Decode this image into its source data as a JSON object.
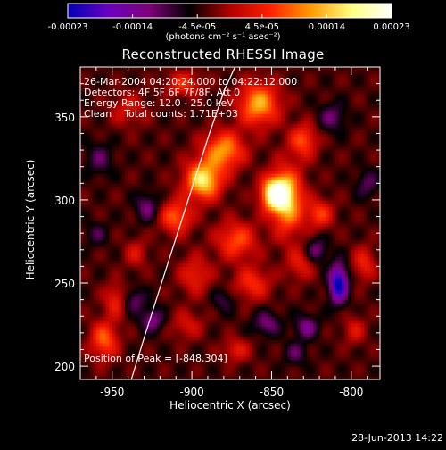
{
  "chart_data": {
    "type": "heatmap",
    "title": "Reconstructed RHESSI Image",
    "xlabel": "Heliocentric X (arcsec)",
    "ylabel": "Heliocentric Y (arcsec)",
    "xlim": [
      -970,
      -782
    ],
    "ylim": [
      192,
      380
    ],
    "x_ticks": [
      -950,
      -900,
      -850,
      -800
    ],
    "y_ticks": [
      200,
      250,
      300,
      350
    ],
    "colorbar": {
      "range": [
        -0.00023,
        0.00023
      ],
      "tick_labels": [
        "-0.00023",
        "-0.00014",
        "-4.5e-05",
        "4.5e-05",
        "0.00014",
        "0.00023"
      ],
      "units_label": "(photons cm⁻² s⁻¹ asec⁻²)",
      "colors": [
        "#0000b4",
        "#6a00c0",
        "#80007a",
        "#000000",
        "#b00000",
        "#ff2000",
        "#ff9a00",
        "#ffff80",
        "#ffffff"
      ]
    },
    "annotations": [
      "26-Mar-2004 04:20:24.000 to 04:22:12.000",
      "Detectors: 4F 5F 6F 7F/8F, Att 0",
      "Energy Range: 12.0 - 25.0 keV",
      "Clean    Total counts: 1.71E+03"
    ],
    "peak_label": "Position of Peak = [-848,304]",
    "peak_position": [
      -848,
      304
    ],
    "limb_curve": [
      [
        -938,
        192
      ],
      [
        -929,
        220
      ],
      [
        -919,
        250
      ],
      [
        -909,
        280
      ],
      [
        -899,
        310
      ],
      [
        -889,
        340
      ],
      [
        -880,
        365
      ],
      [
        -873,
        380
      ]
    ],
    "sources": [
      {
        "x": -848,
        "y": 304,
        "amp": 0.00023,
        "sx": 6,
        "sy": 7
      },
      {
        "x": -893,
        "y": 312,
        "amp": 0.0002,
        "sx": 8,
        "sy": 8
      },
      {
        "x": -840,
        "y": 300,
        "amp": 0.00017,
        "sx": 7,
        "sy": 14
      },
      {
        "x": -880,
        "y": 330,
        "amp": 0.00015,
        "sx": 9,
        "sy": 8
      },
      {
        "x": -858,
        "y": 358,
        "amp": 0.00016,
        "sx": 9,
        "sy": 9
      },
      {
        "x": -910,
        "y": 290,
        "amp": 0.00012,
        "sx": 7,
        "sy": 7
      },
      {
        "x": -830,
        "y": 336,
        "amp": 0.00011,
        "sx": 6,
        "sy": 7
      },
      {
        "x": -820,
        "y": 292,
        "amp": 0.0001,
        "sx": 6,
        "sy": 6
      },
      {
        "x": -872,
        "y": 276,
        "amp": 0.00011,
        "sx": 9,
        "sy": 8
      },
      {
        "x": -862,
        "y": 250,
        "amp": 9e-05,
        "sx": 8,
        "sy": 7
      },
      {
        "x": -898,
        "y": 255,
        "amp": 8e-05,
        "sx": 7,
        "sy": 8
      },
      {
        "x": -955,
        "y": 216,
        "amp": 0.00012,
        "sx": 6,
        "sy": 8
      },
      {
        "x": -948,
        "y": 240,
        "amp": 8e-05,
        "sx": 5,
        "sy": 7
      },
      {
        "x": -935,
        "y": 268,
        "amp": 6e-05,
        "sx": 5,
        "sy": 6
      },
      {
        "x": -903,
        "y": 225,
        "amp": 6e-05,
        "sx": 7,
        "sy": 6
      },
      {
        "x": -872,
        "y": 210,
        "amp": 7e-05,
        "sx": 6,
        "sy": 5
      },
      {
        "x": -832,
        "y": 262,
        "amp": 7e-05,
        "sx": 6,
        "sy": 7
      },
      {
        "x": -792,
        "y": 262,
        "amp": 8e-05,
        "sx": 5,
        "sy": 7
      },
      {
        "x": -798,
        "y": 222,
        "amp": 6e-05,
        "sx": 5,
        "sy": 6
      },
      {
        "x": -940,
        "y": 355,
        "amp": 6e-05,
        "sx": 8,
        "sy": 7
      },
      {
        "x": -905,
        "y": 370,
        "amp": 9e-05,
        "sx": 8,
        "sy": 5
      },
      {
        "x": -808,
        "y": 250,
        "amp": -0.0002,
        "sx": 4,
        "sy": 8
      },
      {
        "x": -828,
        "y": 224,
        "amp": -9e-05,
        "sx": 5,
        "sy": 5
      },
      {
        "x": -822,
        "y": 270,
        "amp": -8e-05,
        "sx": 5,
        "sy": 5
      },
      {
        "x": -925,
        "y": 228,
        "amp": -9e-05,
        "sx": 5,
        "sy": 5
      },
      {
        "x": -936,
        "y": 240,
        "amp": -7e-05,
        "sx": 5,
        "sy": 5
      },
      {
        "x": -928,
        "y": 296,
        "amp": -8e-05,
        "sx": 5,
        "sy": 6
      },
      {
        "x": -853,
        "y": 226,
        "amp": -8e-05,
        "sx": 6,
        "sy": 5
      },
      {
        "x": -835,
        "y": 208,
        "amp": -6e-05,
        "sx": 5,
        "sy": 5
      },
      {
        "x": -790,
        "y": 310,
        "amp": -6e-05,
        "sx": 5,
        "sy": 6
      },
      {
        "x": -812,
        "y": 350,
        "amp": -7e-05,
        "sx": 6,
        "sy": 6
      },
      {
        "x": -958,
        "y": 325,
        "amp": -6e-05,
        "sx": 6,
        "sy": 7
      },
      {
        "x": -960,
        "y": 280,
        "amp": -5e-05,
        "sx": 5,
        "sy": 5
      },
      {
        "x": -880,
        "y": 240,
        "amp": -5e-05,
        "sx": 5,
        "sy": 5
      }
    ],
    "background_level": -3.5e-05
  },
  "footer": {
    "date": "28-Jun-2013 14:22"
  }
}
